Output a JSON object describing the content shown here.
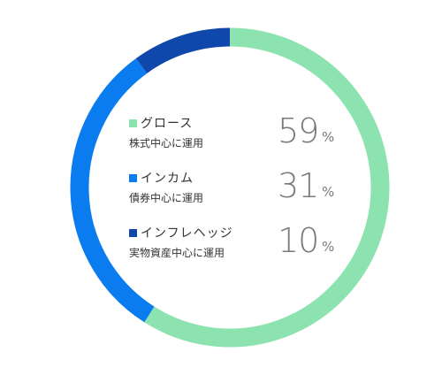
{
  "chart_data": {
    "type": "pie",
    "variant": "donut",
    "series": [
      {
        "name": "グロース",
        "description": "株式中心に運用",
        "value": 59,
        "color": "#8ce3b0"
      },
      {
        "name": "インカム",
        "description": "債券中心に運用",
        "value": 31,
        "color": "#0a7cf0"
      },
      {
        "name": "インフレヘッジ",
        "description": "実物資産中心に運用",
        "value": 10,
        "color": "#0f48aa"
      }
    ],
    "unit": "%",
    "start_position": "top",
    "direction": "clockwise"
  },
  "legend": {
    "items": [
      {
        "name": "グロース",
        "description": "株式中心に運用",
        "value": "59",
        "unit": "%"
      },
      {
        "name": "インカム",
        "description": "債券中心に運用",
        "value": "31",
        "unit": "%"
      },
      {
        "name": "インフレヘッジ",
        "description": "実物資産中心に運用",
        "value": "10",
        "unit": "%"
      }
    ]
  }
}
